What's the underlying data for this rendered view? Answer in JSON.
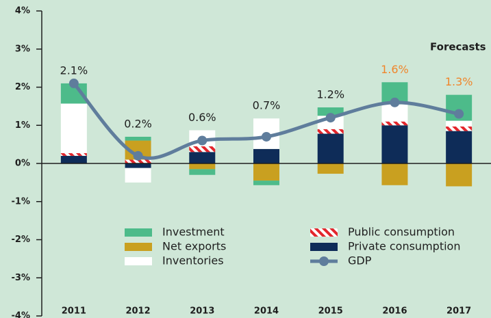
{
  "chart_data": {
    "type": "bar",
    "stacked": true,
    "categories": [
      "2011",
      "2012",
      "2013",
      "2014",
      "2015",
      "2016",
      "2017"
    ],
    "series": [
      {
        "name": "Investment",
        "color": "#4dbb8a",
        "values": [
          0.53,
          0.1,
          -0.15,
          -0.12,
          0.22,
          0.58,
          0.68
        ]
      },
      {
        "name": "Net exports",
        "color": "#c9a020",
        "values": [
          0,
          0.5,
          -0.15,
          -0.45,
          -0.27,
          -0.57,
          -0.6
        ]
      },
      {
        "name": "Inventories",
        "color": "#ffffff",
        "values": [
          1.3,
          -0.38,
          0.42,
          0.8,
          0.35,
          0.45,
          0.15
        ]
      },
      {
        "name": "Public consumption",
        "color": "#e3262c",
        "values": [
          0.07,
          0.1,
          0.15,
          0,
          0.12,
          0.1,
          0.12
        ]
      },
      {
        "name": "Private consumption",
        "color": "#0e2c58",
        "values": [
          0.2,
          -0.12,
          0.3,
          0.38,
          0.78,
          1.0,
          0.85
        ]
      },
      {
        "name": "GDP",
        "type": "line",
        "color": "#5f7d9c",
        "values": [
          2.1,
          0.2,
          0.6,
          0.7,
          1.2,
          1.6,
          1.3
        ],
        "value_labels": [
          "2.1%",
          "0.2%",
          "0.6%",
          "0.7%",
          "1.2%",
          "1.6%",
          "1.3%"
        ],
        "value_label_colors": [
          "#1e1e1e",
          "#1e1e1e",
          "#1e1e1e",
          "#1e1e1e",
          "#1e1e1e",
          "#f0852a",
          "#f0852a"
        ]
      }
    ],
    "annotation": "Forecasts",
    "annotation_color": "#f0852a",
    "ylim": [
      -4,
      4
    ],
    "yticks": [
      {
        "value": -4,
        "label": "-4%"
      },
      {
        "value": -3,
        "label": "-3%"
      },
      {
        "value": -2,
        "label": "-2%"
      },
      {
        "value": -1,
        "label": "-1%"
      },
      {
        "value": 0,
        "label": "0%"
      },
      {
        "value": 1,
        "label": "1%"
      },
      {
        "value": 2,
        "label": "2%"
      },
      {
        "value": 3,
        "label": "3%"
      },
      {
        "value": 4,
        "label": "4%"
      }
    ]
  }
}
